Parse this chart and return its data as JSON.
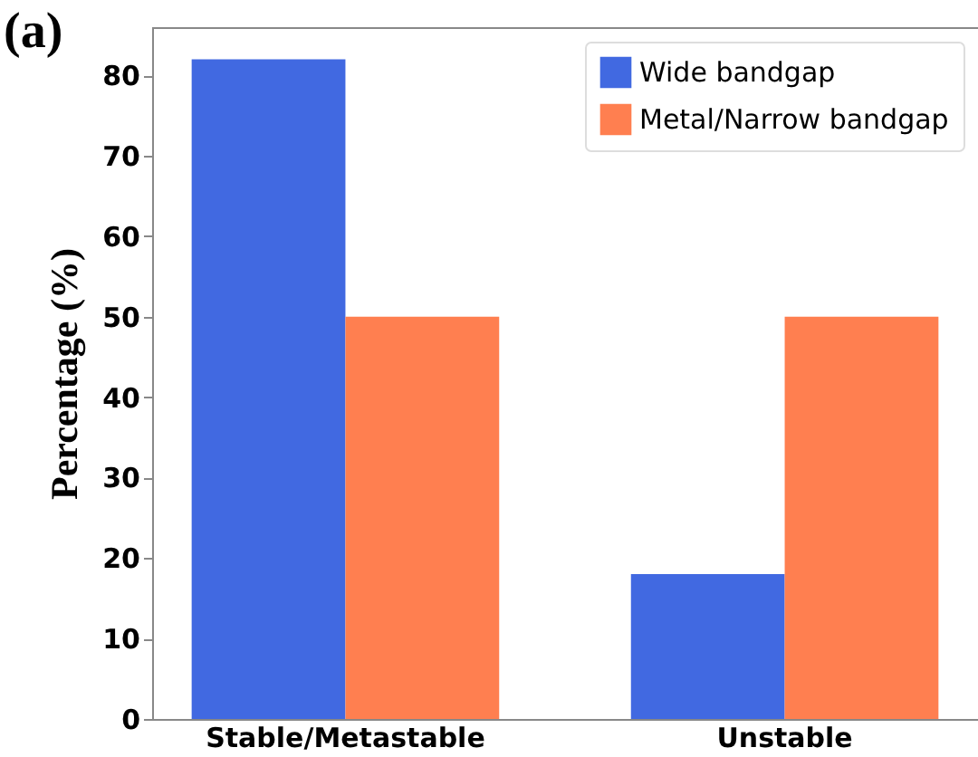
{
  "chart_data": {
    "type": "bar",
    "ylabel": "Percentage (%)",
    "annotations": [
      "(a)"
    ],
    "categories": [
      "Stable/Metastable",
      "Unstable"
    ],
    "series": [
      {
        "name": "Wide bandgap",
        "color": "#4169e1",
        "values": [
          82,
          18
        ]
      },
      {
        "name": "Metal/Narrow bandgap",
        "color": "#ff7f50",
        "values": [
          50,
          50
        ]
      }
    ],
    "ylim": [
      0,
      86
    ],
    "yticks": [
      0,
      10,
      20,
      30,
      40,
      50,
      60,
      70,
      80
    ],
    "legend": "top right",
    "grid": false
  }
}
